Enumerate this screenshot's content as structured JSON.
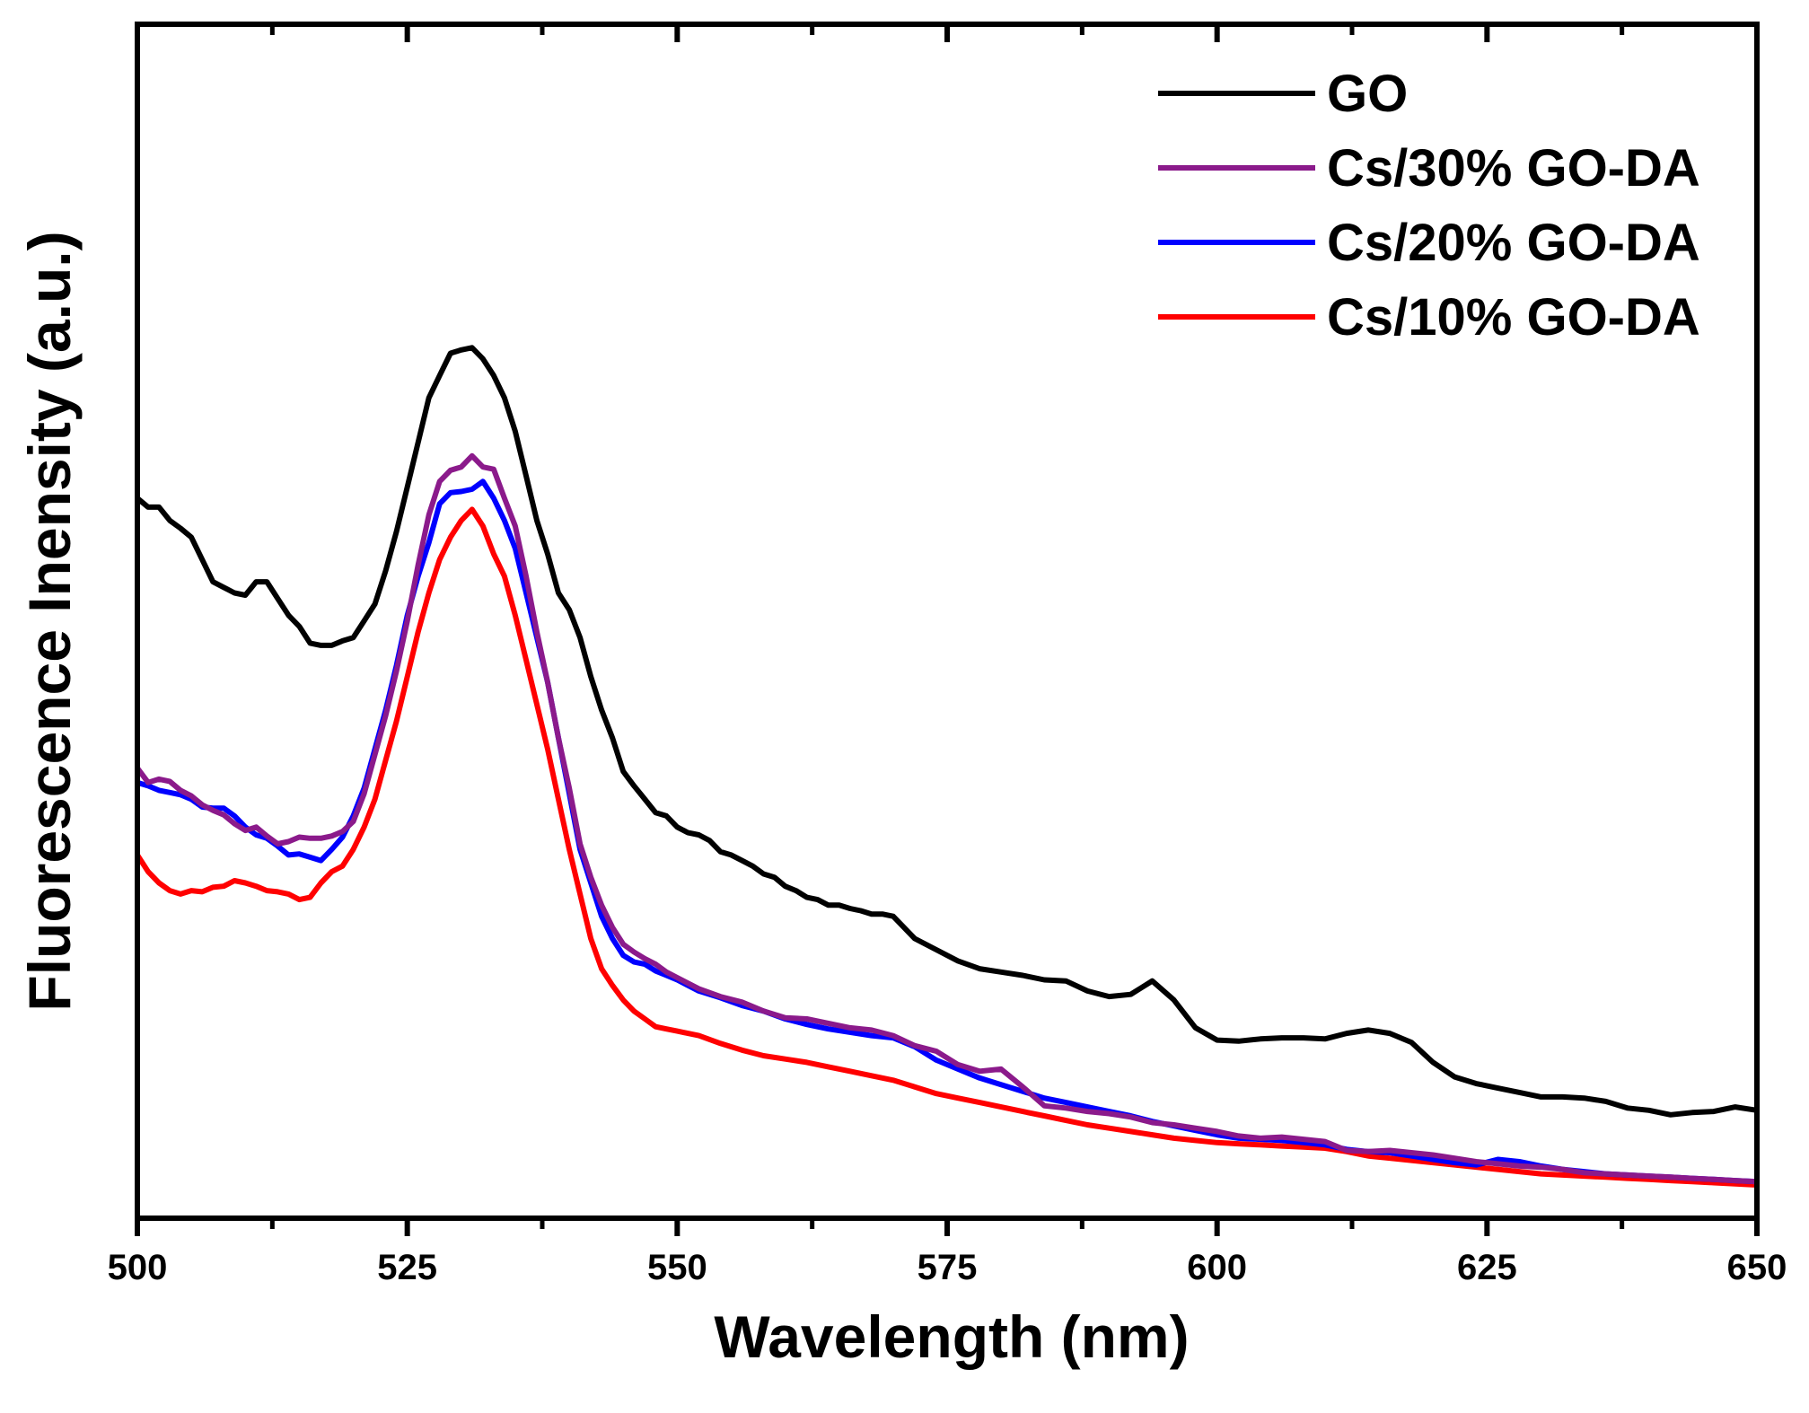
{
  "chart_data": {
    "type": "line",
    "title": "",
    "xlabel": "Wavelength (nm)",
    "ylabel": "Fluorescence Inensity (a.u.)",
    "xlim": [
      500,
      650
    ],
    "ylim": [
      0,
      100
    ],
    "xticks": [
      500,
      525,
      550,
      575,
      600,
      625,
      650
    ],
    "yticks_labeled": false,
    "grid": false,
    "legend_position": "top-right",
    "series": [
      {
        "name": "GO",
        "color": "#000000",
        "x": [
          500,
          501,
          502,
          503,
          504,
          505,
          506,
          507,
          508,
          509,
          510,
          511,
          512,
          513,
          514,
          515,
          516,
          517,
          518,
          519,
          520,
          521,
          522,
          523,
          524,
          525,
          526,
          527,
          528,
          529,
          530,
          531,
          532,
          533,
          534,
          535,
          536,
          537,
          538,
          539,
          540,
          541,
          542,
          543,
          544,
          545,
          546,
          547,
          548,
          549,
          550,
          551,
          552,
          553,
          554,
          555,
          556,
          557,
          558,
          559,
          560,
          561,
          562,
          563,
          564,
          565,
          566,
          567,
          568,
          569,
          570,
          572,
          574,
          576,
          578,
          580,
          582,
          584,
          586,
          588,
          590,
          592,
          594,
          596,
          598,
          600,
          602,
          604,
          606,
          608,
          610,
          612,
          614,
          616,
          618,
          620,
          622,
          624,
          626,
          628,
          630,
          632,
          634,
          636,
          638,
          640,
          642,
          644,
          646,
          648,
          650
        ],
        "values": [
          62,
          61.2,
          61.2,
          60,
          59.3,
          58.5,
          56.5,
          54.5,
          54,
          53.5,
          53.3,
          54.5,
          54.5,
          53,
          51.5,
          50.5,
          49,
          48.8,
          48.8,
          49.2,
          49.5,
          51,
          52.5,
          55.5,
          59,
          63,
          67,
          71,
          73,
          75,
          75.3,
          75.5,
          74.5,
          73,
          71,
          68,
          64,
          60,
          57,
          53.5,
          52,
          49.5,
          46,
          43,
          40.5,
          37.5,
          36.2,
          35,
          33.8,
          33.5,
          32.5,
          32,
          31.8,
          31.3,
          30.3,
          30,
          29.5,
          29,
          28.3,
          28,
          27.2,
          26.8,
          26.2,
          26,
          25.5,
          25.5,
          25.2,
          25,
          24.7,
          24.7,
          24.5,
          22.5,
          21.5,
          20.5,
          19.8,
          19.5,
          19.2,
          18.8,
          18.7,
          17.8,
          17.3,
          17.5,
          18.7,
          17,
          14.5,
          13.4,
          13.3,
          13.5,
          13.6,
          13.6,
          13.5,
          14,
          14.3,
          14,
          13.2,
          11.4,
          10.1,
          9.5,
          9.1,
          8.7,
          8.3,
          8.3,
          8.2,
          7.9,
          7.3,
          7.1,
          6.7,
          6.9,
          7,
          7.4,
          7.1
        ]
      },
      {
        "name": "Cs/30% GO-DA",
        "color": "#8b1a8b",
        "x": [
          500,
          501,
          502,
          503,
          504,
          505,
          506,
          507,
          508,
          509,
          510,
          511,
          512,
          513,
          514,
          515,
          516,
          517,
          518,
          519,
          520,
          521,
          522,
          523,
          524,
          525,
          526,
          527,
          528,
          529,
          530,
          531,
          532,
          533,
          534,
          535,
          536,
          537,
          538,
          539,
          540,
          541,
          542,
          543,
          544,
          545,
          546,
          547,
          548,
          549,
          550,
          552,
          554,
          556,
          558,
          560,
          562,
          564,
          566,
          568,
          570,
          572,
          574,
          576,
          578,
          580,
          582,
          584,
          586,
          588,
          590,
          592,
          594,
          596,
          598,
          600,
          602,
          604,
          606,
          608,
          610,
          612,
          614,
          616,
          618,
          620,
          622,
          624,
          626,
          628,
          630,
          632,
          634,
          636,
          638,
          640,
          642,
          644,
          646,
          648,
          650
        ],
        "values": [
          37.8,
          36.5,
          36.8,
          36.6,
          35.8,
          35.3,
          34.5,
          34,
          33.6,
          32.8,
          32.2,
          32.5,
          31.7,
          31,
          31.2,
          31.6,
          31.5,
          31.5,
          31.7,
          32.1,
          33,
          35.5,
          39,
          42.5,
          46.5,
          51,
          56,
          60.5,
          63.5,
          64.5,
          64.8,
          65.8,
          64.8,
          64.6,
          62,
          59.5,
          55,
          50,
          45.5,
          40.5,
          36,
          31,
          28,
          25.5,
          23.5,
          22,
          21.3,
          20.7,
          20.2,
          19.5,
          19,
          18,
          17.3,
          16.8,
          16,
          15.4,
          15.3,
          14.9,
          14.5,
          14.3,
          13.8,
          12.9,
          12.4,
          11.2,
          10.6,
          10.8,
          9.2,
          7.5,
          7.3,
          7,
          6.8,
          6.5,
          6,
          5.8,
          5.5,
          5.2,
          4.8,
          4.6,
          4.7,
          4.5,
          4.3,
          3.5,
          3.4,
          3.5,
          3.3,
          3.1,
          2.8,
          2.5,
          2.3,
          2.1,
          2,
          1.8,
          1.5,
          1.4,
          1.3,
          1.2,
          1.1,
          1,
          0.9,
          0.8,
          0.7
        ]
      },
      {
        "name": "Cs/20% GO-DA",
        "color": "#0000ff",
        "x": [
          500,
          501,
          502,
          503,
          504,
          505,
          506,
          507,
          508,
          509,
          510,
          511,
          512,
          513,
          514,
          515,
          516,
          517,
          518,
          519,
          520,
          521,
          522,
          523,
          524,
          525,
          526,
          527,
          528,
          529,
          530,
          531,
          532,
          533,
          534,
          535,
          536,
          537,
          538,
          539,
          540,
          541,
          542,
          543,
          544,
          545,
          546,
          547,
          548,
          549,
          550,
          552,
          554,
          556,
          558,
          560,
          562,
          564,
          566,
          568,
          570,
          572,
          574,
          576,
          578,
          580,
          582,
          584,
          586,
          588,
          590,
          592,
          594,
          596,
          598,
          600,
          602,
          604,
          606,
          608,
          610,
          612,
          614,
          616,
          618,
          620,
          622,
          624,
          626,
          628,
          630,
          632,
          634,
          636,
          638,
          640,
          642,
          644,
          646,
          648,
          650
        ],
        "values": [
          36.5,
          36.2,
          35.8,
          35.6,
          35.4,
          35,
          34.3,
          34.2,
          34.2,
          33.5,
          32.5,
          31.8,
          31.5,
          30.8,
          30,
          30.1,
          29.8,
          29.5,
          30.5,
          31.6,
          33.5,
          36,
          39.5,
          43,
          47,
          51.5,
          55,
          58,
          61.5,
          62.5,
          62.6,
          62.8,
          63.5,
          62,
          60,
          57.5,
          53.5,
          49.5,
          45.5,
          40.5,
          35.5,
          30.5,
          27.5,
          24.5,
          22.5,
          21,
          20.4,
          20.2,
          19.6,
          19.2,
          18.8,
          17.8,
          17.2,
          16.5,
          16,
          15.3,
          14.8,
          14.4,
          14.1,
          13.8,
          13.6,
          12.8,
          11.6,
          10.8,
          10,
          9.4,
          8.8,
          8.2,
          7.8,
          7.4,
          7,
          6.6,
          6.1,
          5.7,
          5.3,
          4.9,
          4.6,
          4.5,
          4.4,
          4.2,
          4,
          3.6,
          3.4,
          3.3,
          3,
          2.7,
          2.4,
          2.2,
          2.7,
          2.5,
          2.1,
          1.8,
          1.6,
          1.4,
          1.3,
          1.2,
          1.1,
          1,
          0.9,
          0.8,
          0.7
        ]
      },
      {
        "name": "Cs/10% GO-DA",
        "color": "#ff0000",
        "x": [
          500,
          501,
          502,
          503,
          504,
          505,
          506,
          507,
          508,
          509,
          510,
          511,
          512,
          513,
          514,
          515,
          516,
          517,
          518,
          519,
          520,
          521,
          522,
          523,
          524,
          525,
          526,
          527,
          528,
          529,
          530,
          531,
          532,
          533,
          534,
          535,
          536,
          537,
          538,
          539,
          540,
          541,
          542,
          543,
          544,
          545,
          546,
          547,
          548,
          549,
          550,
          552,
          554,
          556,
          558,
          560,
          562,
          564,
          566,
          568,
          570,
          572,
          574,
          576,
          578,
          580,
          582,
          584,
          586,
          588,
          590,
          592,
          594,
          596,
          598,
          600,
          602,
          604,
          606,
          608,
          610,
          612,
          614,
          616,
          618,
          620,
          622,
          624,
          626,
          628,
          630,
          632,
          634,
          636,
          638,
          640,
          642,
          644,
          646,
          648,
          650
        ],
        "values": [
          30,
          28.5,
          27.5,
          26.8,
          26.5,
          26.8,
          26.7,
          27.1,
          27.2,
          27.7,
          27.5,
          27.2,
          26.8,
          26.7,
          26.5,
          26,
          26.2,
          27.5,
          28.5,
          29,
          30.5,
          32.5,
          35,
          38.5,
          42,
          46,
          50,
          53.5,
          56.5,
          58.5,
          60,
          61,
          59.5,
          57,
          55,
          51.5,
          47.5,
          43.5,
          39.5,
          35,
          30.5,
          26.5,
          22.5,
          19.8,
          18.3,
          17,
          16,
          15.3,
          14.6,
          14.4,
          14.2,
          13.8,
          13.1,
          12.5,
          12,
          11.7,
          11.4,
          11,
          10.6,
          10.2,
          9.8,
          9.2,
          8.6,
          8.2,
          7.8,
          7.4,
          7,
          6.6,
          6.2,
          5.8,
          5.5,
          5.2,
          4.9,
          4.6,
          4.4,
          4.2,
          4.1,
          4,
          3.9,
          3.8,
          3.7,
          3.4,
          3,
          2.8,
          2.6,
          2.4,
          2.2,
          2,
          1.8,
          1.6,
          1.4,
          1.3,
          1.2,
          1.1,
          1,
          0.9,
          0.8,
          0.7,
          0.6,
          0.5,
          0.4
        ]
      }
    ]
  }
}
